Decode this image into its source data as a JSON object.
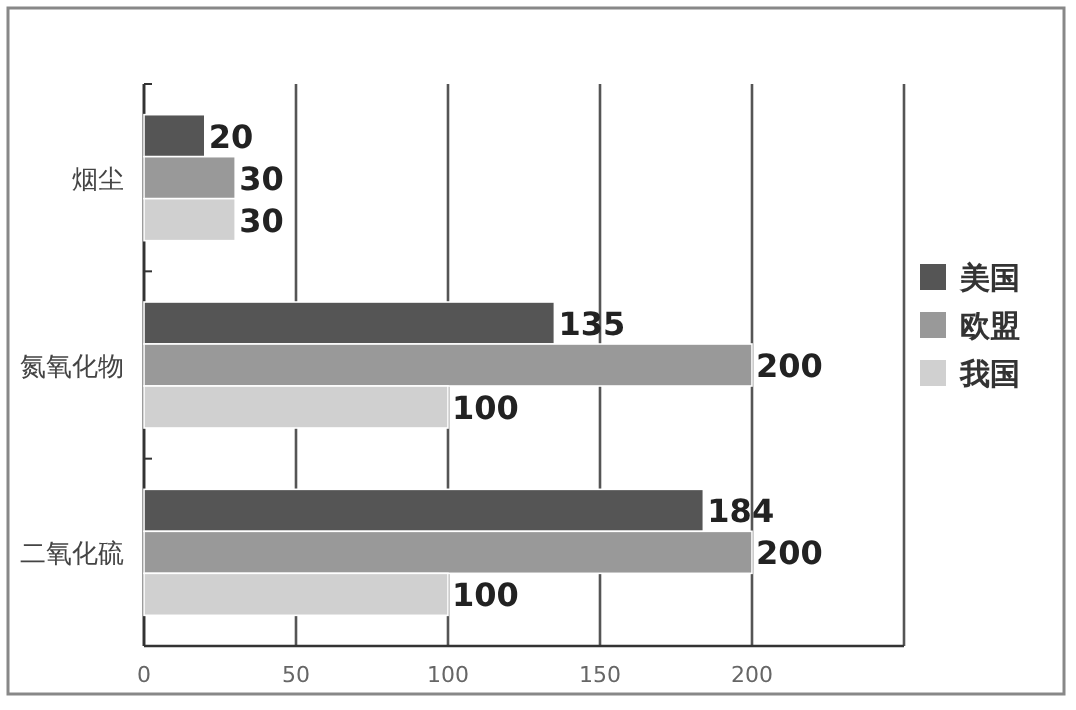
{
  "chart_data": {
    "type": "bar",
    "orientation": "horizontal",
    "categories": [
      "烟尘",
      "氮氧化物",
      "二氧化硫"
    ],
    "series": [
      {
        "name": "美国",
        "color": "#555555",
        "values": [
          20,
          135,
          184
        ]
      },
      {
        "name": "欧盟",
        "color": "#999999",
        "values": [
          30,
          200,
          200
        ]
      },
      {
        "name": "我国",
        "color": "#d0d0d0",
        "values": [
          30,
          100,
          100
        ]
      }
    ],
    "xlim": [
      0,
      250
    ],
    "xticks": [
      0,
      50,
      100,
      150,
      200,
      {
        "value": 250,
        "label": null
      }
    ],
    "grid": "x",
    "legend": "right",
    "data_labels": true
  }
}
